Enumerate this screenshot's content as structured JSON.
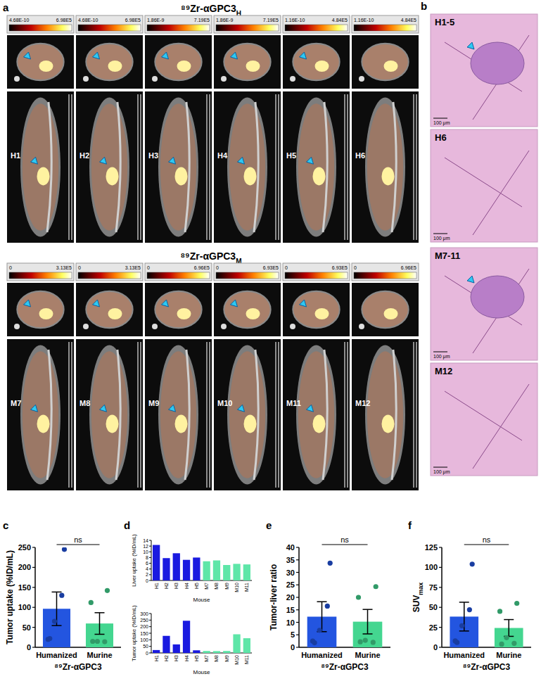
{
  "figure": {
    "panel_labels": [
      "a",
      "b",
      "c",
      "d",
      "e",
      "f"
    ],
    "scans": [
      {
        "title": "⁸⁹Zr-αGPC3",
        "title_sub": "H",
        "mice": [
          {
            "label": "H1",
            "scale_min": "4.68E-10",
            "scale_max": "6.98E5"
          },
          {
            "label": "H2",
            "scale_min": "4.68E-10",
            "scale_max": "6.98E5"
          },
          {
            "label": "H3",
            "scale_min": "1.86E-9",
            "scale_max": "7.19E5"
          },
          {
            "label": "H4",
            "scale_min": "1.86E-9",
            "scale_max": "7.19E5"
          },
          {
            "label": "H5",
            "scale_min": "1.16E-10",
            "scale_max": "4.84E5"
          },
          {
            "label": "H6",
            "scale_min": "1.16E-10",
            "scale_max": "4.84E5"
          }
        ]
      },
      {
        "title": "⁸⁹Zr-αGPC3",
        "title_sub": "M",
        "mice": [
          {
            "label": "M7",
            "scale_min": "0",
            "scale_max": "3.13E5"
          },
          {
            "label": "M8",
            "scale_min": "0",
            "scale_max": "3.13E5"
          },
          {
            "label": "M9",
            "scale_min": "0",
            "scale_max": "6.96E5"
          },
          {
            "label": "M10",
            "scale_min": "0",
            "scale_max": "6.93E5"
          },
          {
            "label": "M11",
            "scale_min": "0",
            "scale_max": "6.93E5"
          },
          {
            "label": "M12",
            "scale_min": "0",
            "scale_max": "6.96E5"
          }
        ]
      }
    ],
    "histology": {
      "sections": [
        "H1-5",
        "H6",
        "M7-11",
        "M12"
      ],
      "scale_bar": "100 μm"
    }
  },
  "chart_data": [
    {
      "type": "bar",
      "y_label": "Tumor uptake (%ID/mL)",
      "x_label": "⁸⁹Zr-αGPC3",
      "categories": [
        "Humanized",
        "Murine"
      ],
      "values": [
        96.4,
        59.6
      ],
      "errors": [
        42,
        27
      ],
      "points": [
        [
          22,
          130,
          65,
          245,
          20
        ],
        [
          15,
          14,
          15,
          142,
          112
        ]
      ],
      "colors": [
        "#2355e0",
        "#44d690"
      ],
      "ylim": [
        0,
        250
      ],
      "yticks": [
        0,
        50,
        100,
        150,
        200,
        250
      ],
      "annotations": [
        "ns"
      ]
    },
    {
      "type": "bar",
      "y_label": "Liver uptake (%ID/mL)",
      "x_label": "Mouse",
      "categories": [
        "H1",
        "H2",
        "H3",
        "H4",
        "H5",
        "M7",
        "M8",
        "M9",
        "M10",
        "M11"
      ],
      "values": [
        12.4,
        7.8,
        9.5,
        7.2,
        8.0,
        6.7,
        7.0,
        5.4,
        5.8,
        5.6
      ],
      "colors": [
        "#1a1ae0",
        "#1a1ae0",
        "#1a1ae0",
        "#1a1ae0",
        "#1a1ae0",
        "#5ee6a8",
        "#5ee6a8",
        "#5ee6a8",
        "#5ee6a8",
        "#5ee6a8"
      ],
      "ylim": [
        0,
        14
      ],
      "yticks": [
        0,
        2,
        4,
        6,
        8,
        10,
        12,
        14
      ]
    },
    {
      "type": "bar",
      "y_label": "Tumor uptake (%ID/mL)",
      "x_label": "Mouse",
      "categories": [
        "H1",
        "H2",
        "H3",
        "H4",
        "H5",
        "M7",
        "M8",
        "M9",
        "M10",
        "M11"
      ],
      "values": [
        22,
        130,
        65,
        245,
        20,
        15,
        14,
        15,
        142,
        112
      ],
      "colors": [
        "#1a1ae0",
        "#1a1ae0",
        "#1a1ae0",
        "#1a1ae0",
        "#1a1ae0",
        "#5ee6a8",
        "#5ee6a8",
        "#5ee6a8",
        "#5ee6a8",
        "#5ee6a8"
      ],
      "ylim": [
        0,
        300
      ],
      "yticks": [
        0,
        50,
        100,
        150,
        200,
        250,
        300
      ]
    },
    {
      "type": "bar",
      "y_label": "Tumor-liver ratio",
      "x_label": "⁸⁹Zr-αGPC3",
      "categories": [
        "Humanized",
        "Murine"
      ],
      "values": [
        12.26,
        10.26
      ],
      "errors": [
        6.0,
        4.9
      ],
      "points": [
        [
          1.8,
          16.5,
          6.8,
          33.7,
          2.5
        ],
        [
          2.2,
          2.0,
          2.8,
          24.3,
          20.0
        ]
      ],
      "colors": [
        "#2355e0",
        "#44d690"
      ],
      "ylim": [
        0,
        40
      ],
      "yticks": [
        0,
        5,
        10,
        15,
        20,
        25,
        30,
        35,
        40
      ],
      "annotations": [
        "ns"
      ]
    },
    {
      "type": "bar",
      "y_label": "SUV",
      "y_label_sub": "max",
      "x_label": "⁸⁹Zr-αGPC3",
      "categories": [
        "Humanized",
        "Murine"
      ],
      "values": [
        38.4,
        24.2
      ],
      "errors": [
        18,
        10.5
      ],
      "points": [
        [
          6,
          47,
          27,
          104,
          8
        ],
        [
          4,
          5,
          12,
          55,
          45
        ]
      ],
      "colors": [
        "#2355e0",
        "#44d690"
      ],
      "ylim": [
        0,
        125
      ],
      "yticks": [
        0,
        25,
        50,
        75,
        100,
        125
      ],
      "annotations": [
        "ns"
      ]
    }
  ]
}
